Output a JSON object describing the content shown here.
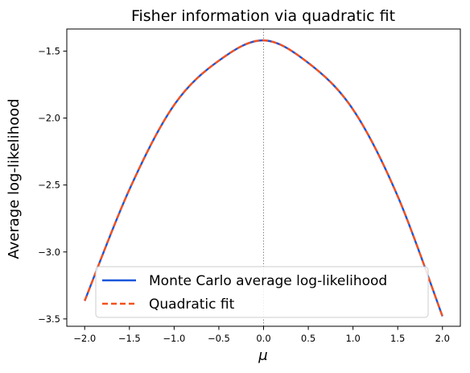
{
  "chart_data": {
    "type": "line",
    "title": "Fisher information via quadratic fit",
    "xlabel": "μ",
    "ylabel": "Average log-likelihood",
    "xlim": [
      -2.2,
      2.2
    ],
    "ylim": [
      -3.555,
      -1.335
    ],
    "x_ticks": [
      -2.0,
      -1.5,
      -1.0,
      -0.5,
      0.0,
      0.5,
      1.0,
      1.5,
      2.0
    ],
    "x_tick_labels": [
      "−2.0",
      "−1.5",
      "−1.0",
      "−0.5",
      "0.0",
      "0.5",
      "1.0",
      "1.5",
      "2.0"
    ],
    "y_ticks": [
      -1.5,
      -2.0,
      -2.5,
      -3.0,
      -3.5
    ],
    "y_tick_labels": [
      "−1.5",
      "−2.0",
      "−2.5",
      "−3.0",
      "−3.5"
    ],
    "vline_x": 0.0,
    "legend_position": "lower-center",
    "grid": false,
    "series": [
      {
        "name": "Monte Carlo average log-likelihood",
        "style": "solid",
        "color": "#1a56db",
        "x": [
          -2.0,
          -1.5,
          -1.0,
          -0.5,
          0.0,
          0.5,
          1.0,
          1.5,
          2.0
        ],
        "y": [
          -3.365,
          -2.5335,
          -1.9025,
          -1.5715,
          -1.42,
          -1.588,
          -1.936,
          -2.584,
          -3.48
        ]
      },
      {
        "name": "Quadratic fit",
        "style": "dashed",
        "color": "#f4511e",
        "x": [
          -2.0,
          -1.5,
          -1.0,
          -0.5,
          0.0,
          0.5,
          1.0,
          1.5,
          2.0
        ],
        "y": [
          -3.365,
          -2.5335,
          -1.9025,
          -1.5715,
          -1.42,
          -1.588,
          -1.936,
          -2.584,
          -3.48
        ]
      }
    ]
  }
}
